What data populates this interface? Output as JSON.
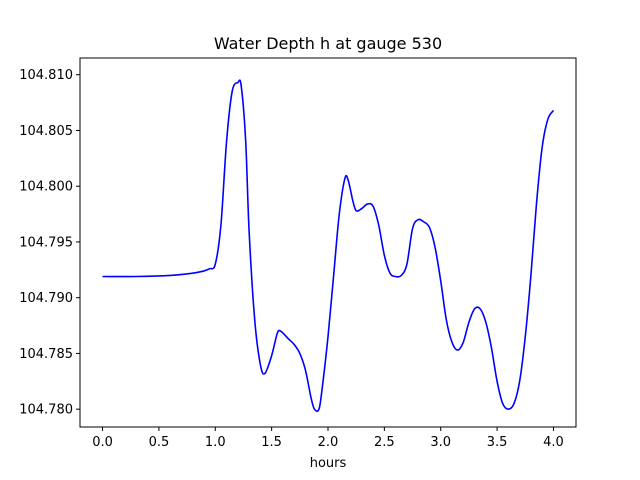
{
  "chart_data": {
    "type": "line",
    "title": "Water Depth h at gauge 530",
    "xlabel": "hours",
    "ylabel": "",
    "xlim": [
      -0.2,
      4.2
    ],
    "ylim": [
      104.7784,
      104.8115
    ],
    "x_ticks": [
      0.0,
      0.5,
      1.0,
      1.5,
      2.0,
      2.5,
      3.0,
      3.5,
      4.0
    ],
    "x_tick_labels": [
      "0.0",
      "0.5",
      "1.0",
      "1.5",
      "2.0",
      "2.5",
      "3.0",
      "3.5",
      "4.0"
    ],
    "y_ticks": [
      104.78,
      104.785,
      104.79,
      104.795,
      104.8,
      104.805,
      104.81
    ],
    "y_tick_labels": [
      "104.780",
      "104.785",
      "104.790",
      "104.795",
      "104.800",
      "104.805",
      "104.810"
    ],
    "grid": false,
    "series": [
      {
        "color": "#0000ff",
        "x": [
          0.0,
          0.3,
          0.6,
          0.8,
          0.9,
          0.95,
          1.0,
          1.05,
          1.1,
          1.15,
          1.2,
          1.23,
          1.27,
          1.3,
          1.35,
          1.4,
          1.44,
          1.5,
          1.55,
          1.58,
          1.65,
          1.7,
          1.75,
          1.8,
          1.85,
          1.88,
          1.92,
          1.95,
          2.0,
          2.05,
          2.1,
          2.15,
          2.18,
          2.22,
          2.25,
          2.3,
          2.35,
          2.4,
          2.45,
          2.5,
          2.55,
          2.6,
          2.65,
          2.7,
          2.75,
          2.8,
          2.85,
          2.9,
          2.95,
          3.0,
          3.05,
          3.1,
          3.15,
          3.2,
          3.25,
          3.3,
          3.35,
          3.4,
          3.45,
          3.5,
          3.55,
          3.6,
          3.65,
          3.7,
          3.75,
          3.8,
          3.85,
          3.9,
          3.95,
          4.0
        ],
        "y": [
          104.7919,
          104.7919,
          104.792,
          104.7922,
          104.7924,
          104.7926,
          104.793,
          104.7965,
          104.804,
          104.8085,
          104.8093,
          104.809,
          104.804,
          104.796,
          104.788,
          104.784,
          104.7832,
          104.7848,
          104.7868,
          104.787,
          104.7863,
          104.7858,
          104.785,
          104.7835,
          104.781,
          104.78,
          104.78,
          104.782,
          104.7865,
          104.792,
          104.7975,
          104.8007,
          104.8005,
          104.7987,
          104.7978,
          104.798,
          104.7984,
          104.7982,
          104.7965,
          104.7938,
          104.7922,
          104.7919,
          104.792,
          104.793,
          104.7962,
          104.797,
          104.7968,
          104.7963,
          104.7945,
          104.7915,
          104.788,
          104.786,
          104.7853,
          104.786,
          104.7878,
          104.789,
          104.789,
          104.7878,
          104.7855,
          104.7825,
          104.7805,
          104.78,
          104.7805,
          104.7825,
          104.7865,
          104.792,
          104.7985,
          104.8035,
          104.806,
          104.8068
        ]
      }
    ]
  }
}
